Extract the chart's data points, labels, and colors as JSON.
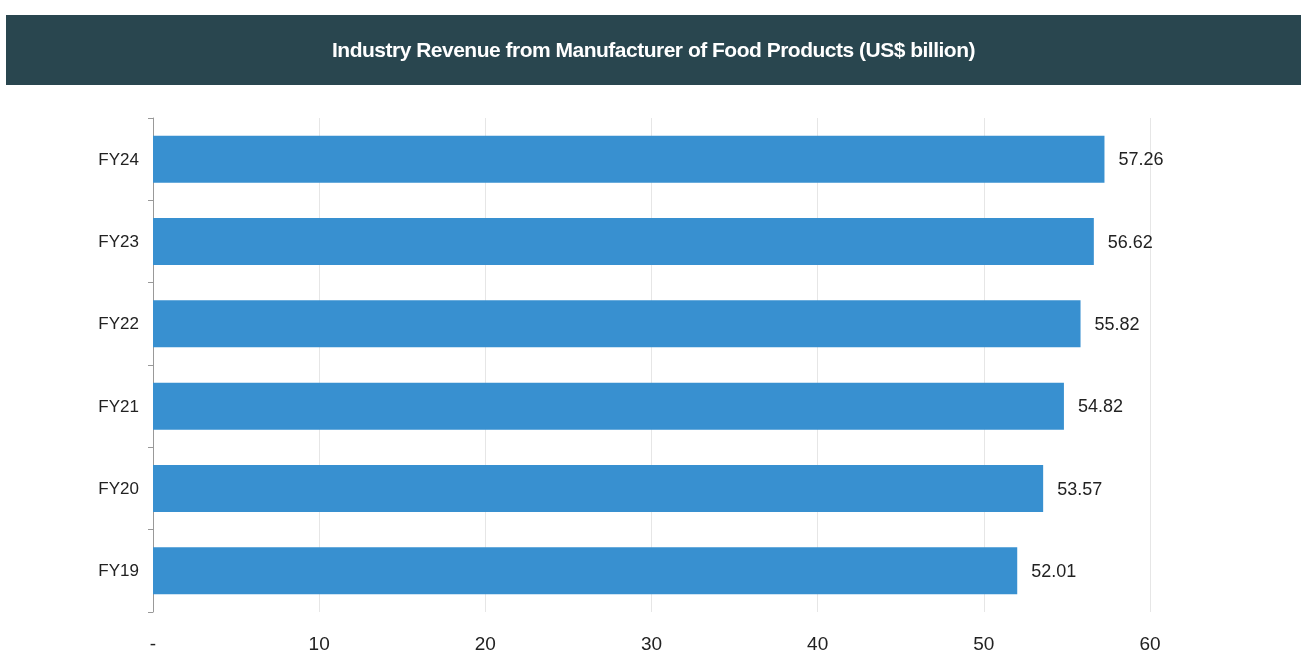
{
  "chart_data": {
    "type": "bar",
    "orientation": "horizontal",
    "title": "Industry Revenue from Manufacturer of Food Products (US$ billion)",
    "categories": [
      "FY24",
      "FY23",
      "FY22",
      "FY21",
      "FY20",
      "FY19"
    ],
    "values": [
      57.26,
      56.62,
      55.82,
      54.82,
      53.57,
      52.01
    ],
    "color": "#3890d0",
    "xlim": [
      0,
      60
    ],
    "xticks": [
      {
        "value": 0,
        "label": "-"
      },
      10,
      20,
      30,
      40,
      50,
      60
    ],
    "grid": "x",
    "data_labels": true
  }
}
